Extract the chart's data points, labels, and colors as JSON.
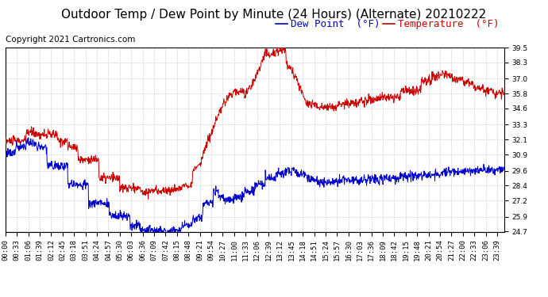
{
  "title": "Outdoor Temp / Dew Point by Minute (24 Hours) (Alternate) 20210222",
  "copyright": "Copyright 2021 Cartronics.com",
  "legend_dew": "Dew Point  (°F)",
  "legend_temp": "Temperature  (°F)",
  "color_temp": "#cc0000",
  "color_dew": "#0000cc",
  "color_bg": "#ffffff",
  "color_grid": "#bbbbbb",
  "ylim_min": 24.7,
  "ylim_max": 39.5,
  "yticks": [
    24.7,
    25.9,
    27.2,
    28.4,
    29.6,
    30.9,
    32.1,
    33.3,
    34.6,
    35.8,
    37.0,
    38.3,
    39.5
  ],
  "title_fontsize": 11,
  "copyright_fontsize": 7.5,
  "legend_fontsize": 9,
  "tick_fontsize": 6.5,
  "background_color": "#ffffff",
  "tick_color": "#000000",
  "xtick_step_min": 33
}
